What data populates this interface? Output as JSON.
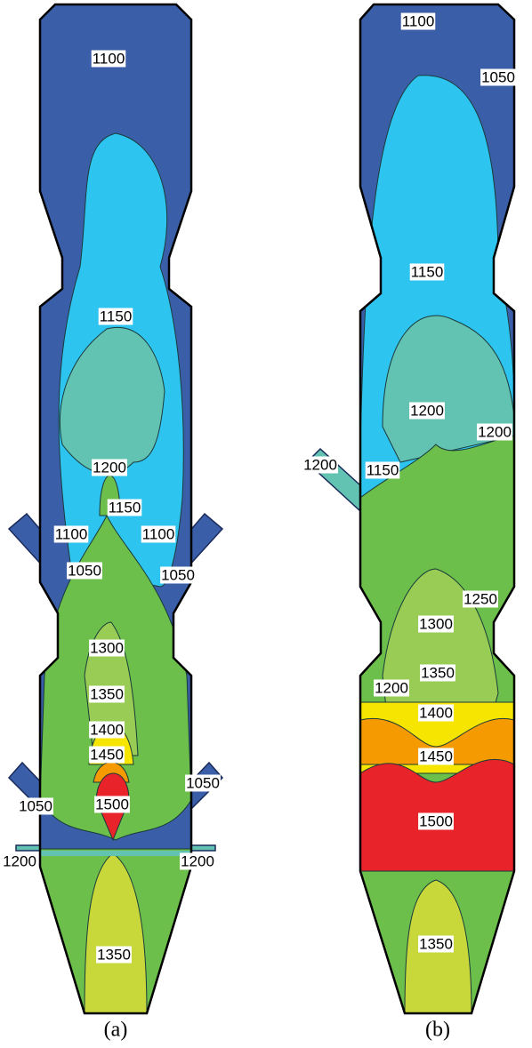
{
  "panels": [
    {
      "caption": "(a)",
      "labels": [
        "1100",
        "1150",
        "1200",
        "1150",
        "1100",
        "1100",
        "1050",
        "1050",
        "1300",
        "1350",
        "1400",
        "1450",
        "1050",
        "1500",
        "1050",
        "1200",
        "1200",
        "1350"
      ]
    },
    {
      "caption": "(b)",
      "labels": [
        "1100",
        "1050",
        "1150",
        "1200",
        "1200",
        "1200",
        "1150",
        "1250",
        "1300",
        "1350",
        "1200",
        "1400",
        "1450",
        "1500",
        "1350"
      ]
    }
  ]
}
